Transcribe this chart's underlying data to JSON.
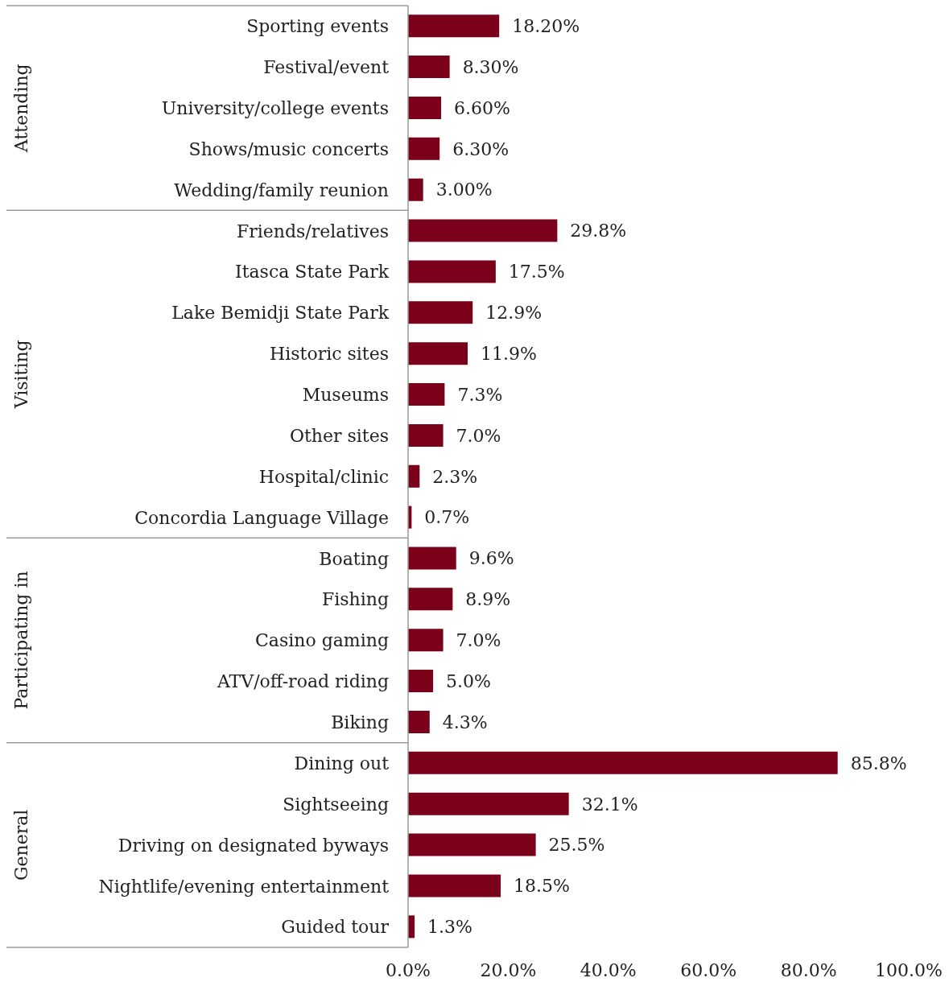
{
  "chart_data": {
    "type": "bar",
    "orientation": "horizontal",
    "categories": [
      "Sporting events",
      "Festival/event",
      "University/college events",
      "Shows/music concerts",
      "Wedding/family reunion",
      "Friends/relatives",
      "Itasca State Park",
      "Lake Bemidji State Park",
      "Historic sites",
      "Museums",
      "Other sites",
      "Hospital/clinic",
      "Concordia Language Village",
      "Boating",
      "Fishing",
      "Casino gaming",
      "ATV/off-road riding",
      "Biking",
      "Dining out",
      "Sightseeing",
      "Driving on designated byways",
      "Nightlife/evening entertainment",
      "Guided tour"
    ],
    "values": [
      18.2,
      8.3,
      6.6,
      6.3,
      3.0,
      29.8,
      17.5,
      12.9,
      11.9,
      7.3,
      7.0,
      2.3,
      0.7,
      9.6,
      8.9,
      7.0,
      5.0,
      4.3,
      85.8,
      32.1,
      25.5,
      18.5,
      1.3
    ],
    "value_labels": [
      "18.20%",
      "8.30%",
      "6.60%",
      "6.30%",
      "3.00%",
      "29.8%",
      "17.5%",
      "12.9%",
      "11.9%",
      "7.3%",
      "7.0%",
      "2.3%",
      "0.7%",
      "9.6%",
      "8.9%",
      "7.0%",
      "5.0%",
      "4.3%",
      "85.8%",
      "32.1%",
      "25.5%",
      "18.5%",
      "1.3%"
    ],
    "color": "#7b0019",
    "xlim": [
      0,
      100
    ],
    "xticks": [
      {
        "value": 0,
        "label": "0.0%"
      },
      {
        "value": 20,
        "label": "20.0%"
      },
      {
        "value": 40,
        "label": "40.0%"
      },
      {
        "value": 60,
        "label": "60.0%"
      },
      {
        "value": 80,
        "label": "80.0%"
      },
      {
        "value": 100,
        "label": "100.0%"
      }
    ],
    "annotations": [
      "Attending",
      "Visiting",
      "Participating in",
      "General"
    ]
  }
}
